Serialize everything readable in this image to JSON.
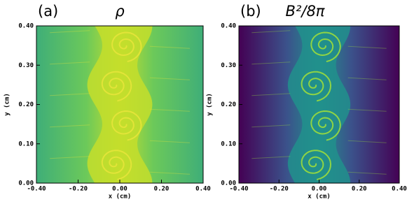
{
  "chart_data": [
    {
      "type": "heatmap",
      "panel_label": "(a)",
      "title": "ρ",
      "xlabel": "x (cm)",
      "ylabel": "y (cm)",
      "xlim": [
        -0.4,
        0.4
      ],
      "ylim": [
        0,
        0.4
      ],
      "xticks": [
        {
          "value": -0.4,
          "label": "-0.40"
        },
        {
          "value": -0.2,
          "label": "-0.20"
        },
        {
          "value": 0,
          "label": "0.00"
        },
        {
          "value": 0.2,
          "label": "0.20"
        },
        {
          "value": 0.4,
          "label": "0.40"
        }
      ],
      "yticks": [
        {
          "value": 0,
          "label": "0.00"
        },
        {
          "value": 0.1,
          "label": "0.10"
        },
        {
          "value": 0.2,
          "label": "0.20"
        },
        {
          "value": 0.3,
          "label": "0.30"
        },
        {
          "value": 0.4,
          "label": "0.40"
        }
      ],
      "colors": [
        "#3fae78",
        "#6cc95a",
        "#c4de2c",
        "#e6e43a"
      ]
    },
    {
      "type": "heatmap",
      "panel_label": "(b)",
      "title": "B²/8π",
      "xlabel": "x (cm)",
      "ylabel": "y (cm)",
      "xlim": [
        -0.4,
        0.4
      ],
      "ylim": [
        0,
        0.4
      ],
      "xticks": [
        {
          "value": -0.4,
          "label": "-0.40"
        },
        {
          "value": -0.2,
          "label": "-0.20"
        },
        {
          "value": 0,
          "label": "0.00"
        },
        {
          "value": 0.2,
          "label": "0.20"
        },
        {
          "value": 0.4,
          "label": "0.40"
        }
      ],
      "yticks": [
        {
          "value": 0,
          "label": "0.00"
        },
        {
          "value": 0.1,
          "label": "0.10"
        },
        {
          "value": 0.2,
          "label": "0.20"
        },
        {
          "value": 0.3,
          "label": "0.30"
        },
        {
          "value": 0.4,
          "label": "0.40"
        }
      ],
      "colors": [
        "#440154",
        "#3b528b",
        "#21918c",
        "#9bdc3c"
      ]
    }
  ]
}
